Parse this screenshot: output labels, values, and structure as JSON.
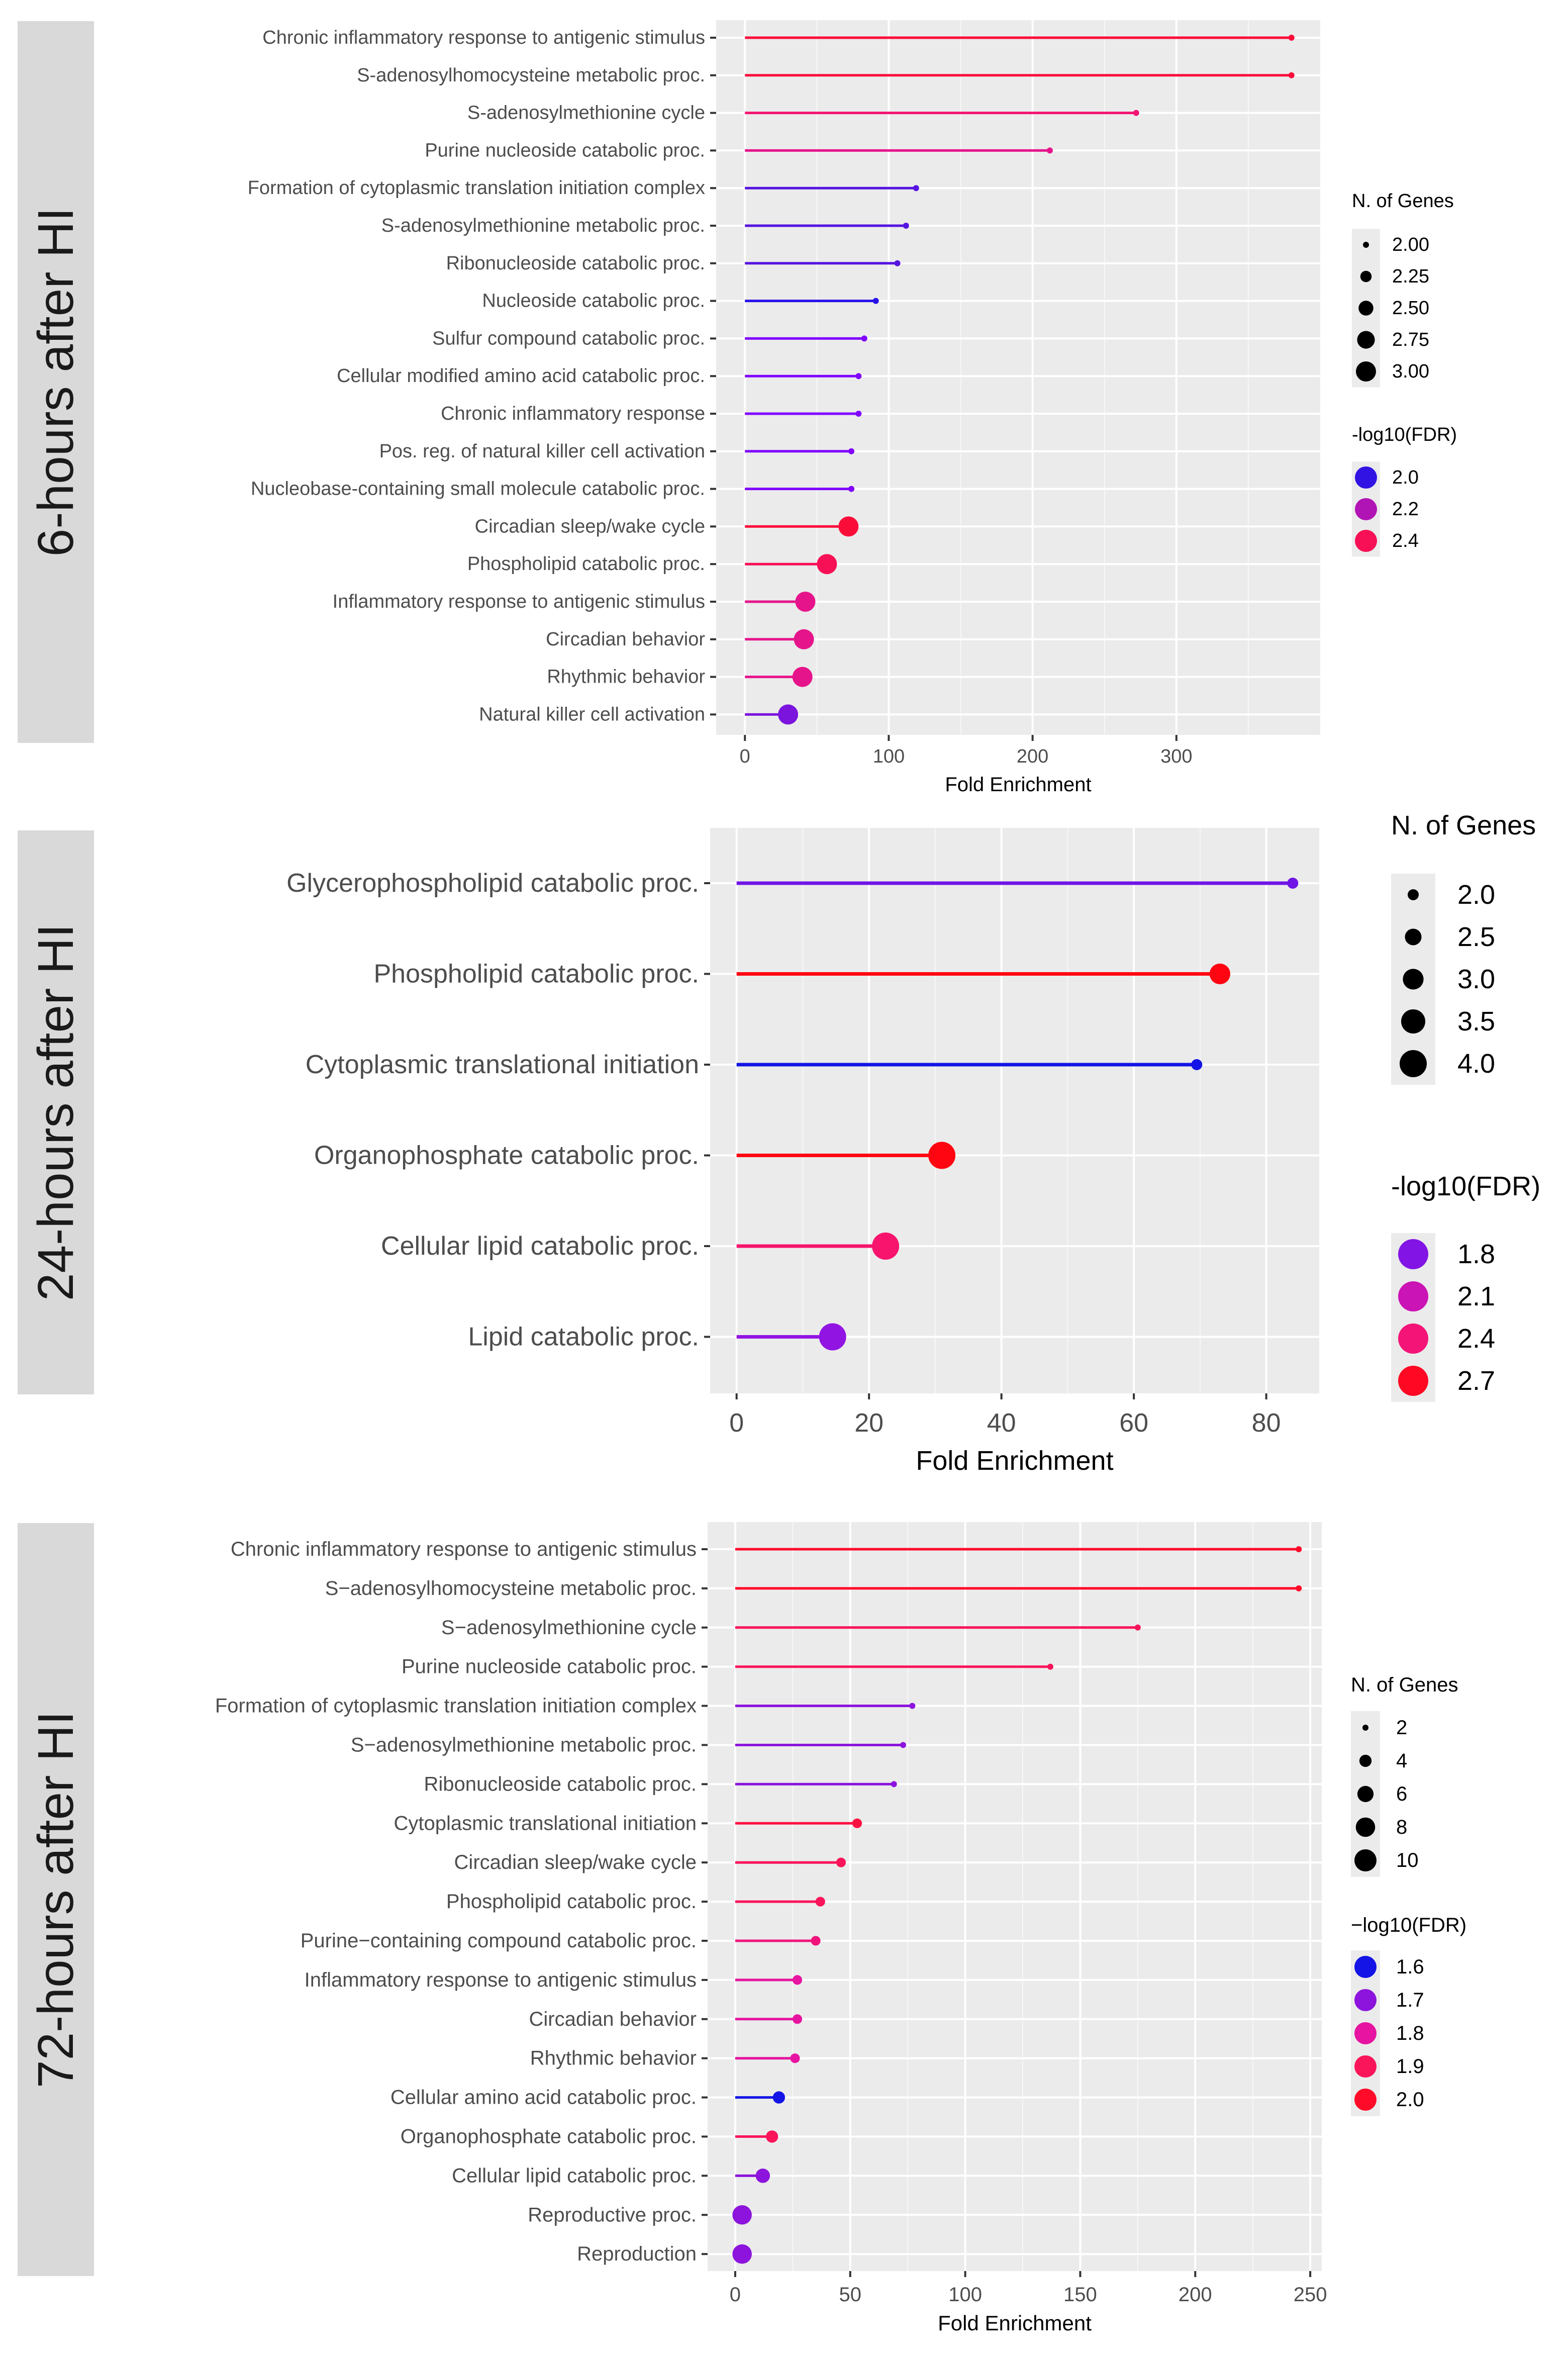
{
  "chart_data": [
    {
      "type": "lollipop",
      "panel_label": "6-hours after HI",
      "xlabel": "Fold Enrichment",
      "xlim": [
        -20,
        400
      ],
      "xticks": [
        0,
        100,
        200,
        300
      ],
      "xtick_labels": [
        "0",
        "100",
        "200",
        "300"
      ],
      "categories": [
        "Chronic inflammatory response to antigenic stimulus",
        "S-adenosylhomocysteine metabolic proc.",
        "S-adenosylmethionine cycle",
        "Purine nucleoside catabolic proc.",
        "Formation of cytoplasmic translation initiation complex",
        "S-adenosylmethionine metabolic proc.",
        "Ribonucleoside catabolic proc.",
        "Nucleoside catabolic proc.",
        "Sulfur compound catabolic proc.",
        "Cellular modified amino acid catabolic proc.",
        "Chronic inflammatory response",
        "Pos. reg. of natural killer cell activation",
        "Nucleobase-containing small molecule catabolic proc.",
        "Circadian sleep/wake cycle",
        "Phospholipid catabolic proc.",
        "Inflammatory response to antigenic stimulus",
        "Circadian behavior",
        "Rhythmic behavior",
        "Natural killer cell activation"
      ],
      "values": [
        380,
        380,
        272,
        212,
        119,
        112,
        106,
        91,
        83,
        79,
        79,
        74,
        74,
        72,
        57,
        42,
        41,
        40,
        30
      ],
      "n_genes": [
        2,
        2,
        2,
        2,
        2,
        2,
        2,
        2,
        2,
        2,
        2,
        2,
        2,
        3,
        3,
        3,
        3,
        3,
        3
      ],
      "neg_log10_fdr": [
        2.45,
        2.45,
        2.35,
        2.3,
        2.05,
        2.05,
        2.05,
        1.95,
        1.9,
        1.9,
        1.9,
        1.9,
        1.9,
        2.45,
        2.4,
        2.3,
        2.3,
        2.3,
        2.1
      ],
      "legend_size": {
        "title": "N. of Genes",
        "labels": [
          "2.00",
          "2.25",
          "2.50",
          "2.75",
          "3.00"
        ]
      },
      "legend_color": {
        "title": "-log10(FDR)",
        "labels": [
          "2.0",
          "2.2",
          "2.4"
        ]
      },
      "grid": true
    },
    {
      "type": "lollipop",
      "panel_label": "24-hours after HI",
      "xlabel": "Fold Enrichment",
      "xlim": [
        -4,
        88
      ],
      "xticks": [
        0,
        20,
        40,
        60,
        80
      ],
      "xtick_labels": [
        "0",
        "20",
        "40",
        "60",
        "80"
      ],
      "categories": [
        "Glycerophospholipid catabolic proc.",
        "Phospholipid catabolic proc.",
        "Cytoplasmic translational initiation",
        "Organophosphate catabolic proc.",
        "Cellular lipid catabolic proc.",
        "Lipid catabolic proc."
      ],
      "values": [
        84,
        73,
        69.5,
        31,
        22.5,
        14.5
      ],
      "n_genes": [
        2,
        3,
        2,
        4,
        4,
        4
      ],
      "neg_log10_fdr": [
        1.75,
        2.75,
        1.5,
        2.75,
        2.45,
        1.85
      ],
      "legend_size": {
        "title": "N. of Genes",
        "labels": [
          "2.0",
          "2.5",
          "3.0",
          "3.5",
          "4.0"
        ]
      },
      "legend_color": {
        "title": "-log10(FDR)",
        "labels": [
          "1.8",
          "2.1",
          "2.4",
          "2.7"
        ]
      },
      "grid": true
    },
    {
      "type": "lollipop",
      "panel_label": "72-hours after HI",
      "xlabel": "Fold Enrichment",
      "xlim": [
        -12,
        255
      ],
      "xticks": [
        0,
        50,
        100,
        150,
        200,
        250
      ],
      "xtick_labels": [
        "0",
        "50",
        "100",
        "150",
        "200",
        "250"
      ],
      "categories": [
        "Chronic inflammatory response to antigenic stimulus",
        "S−adenosylhomocysteine metabolic proc.",
        "S−adenosylmethionine cycle",
        "Purine nucleoside catabolic proc.",
        "Formation of cytoplasmic translation initiation complex",
        "S−adenosylmethionine metabolic proc.",
        "Ribonucleoside catabolic proc.",
        "Cytoplasmic translational initiation",
        "Circadian sleep/wake cycle",
        "Phospholipid catabolic proc.",
        "Purine−containing compound catabolic proc.",
        "Inflammatory response to antigenic stimulus",
        "Circadian behavior",
        "Rhythmic behavior",
        "Cellular amino acid catabolic proc.",
        "Organophosphate catabolic proc.",
        "Cellular lipid catabolic proc.",
        "Reproductive proc.",
        "Reproduction"
      ],
      "values": [
        245,
        245,
        175,
        137,
        77,
        73,
        69,
        53,
        46,
        37,
        35,
        27,
        27,
        26,
        19,
        16,
        12,
        3,
        3
      ],
      "n_genes": [
        2,
        2,
        2,
        2,
        2,
        2,
        2,
        3,
        3,
        3,
        3,
        3,
        3,
        3,
        4,
        4,
        5,
        8,
        8
      ],
      "neg_log10_fdr": [
        2.0,
        2.0,
        1.9,
        1.9,
        1.7,
        1.7,
        1.7,
        1.95,
        1.9,
        1.9,
        1.85,
        1.8,
        1.8,
        1.8,
        1.6,
        1.9,
        1.7,
        1.7,
        1.7
      ],
      "legend_size": {
        "title": "N. of Genes",
        "labels": [
          "2",
          "4",
          "6",
          "8",
          "10"
        ]
      },
      "legend_color": {
        "title": "−log10(FDR)",
        "labels": [
          "1.6",
          "1.7",
          "1.8",
          "1.9",
          "2.0"
        ]
      },
      "grid": true
    }
  ]
}
